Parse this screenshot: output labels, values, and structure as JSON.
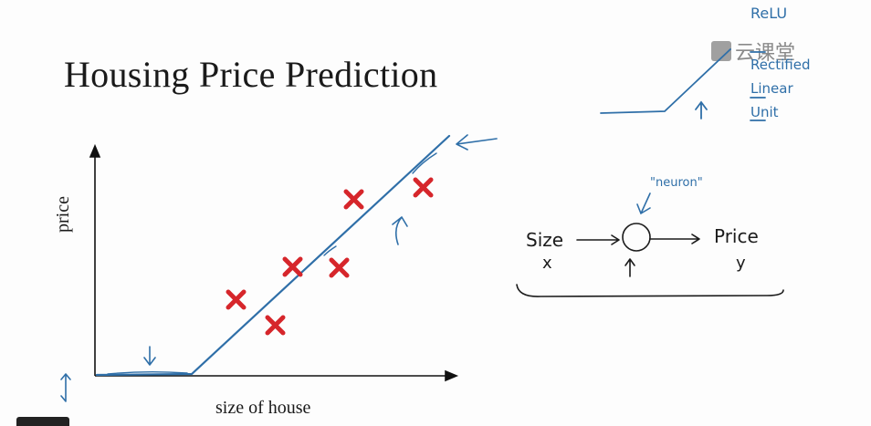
{
  "slide": {
    "title": "Housing Price Prediction",
    "y_axis_label": "price",
    "x_axis_label": "size of house",
    "watermark": "云课堂"
  },
  "annotations": {
    "relu_lines": [
      "ReLU",
      "Rectified",
      "Linear",
      "Unit"
    ],
    "neuron_label": "\"neuron\"",
    "input_word": "Size",
    "input_var": "x",
    "output_word": "Price",
    "output_var": "y"
  },
  "colors": {
    "marker": "#d6262b",
    "pen": "#2f6fa8",
    "ink": "#1b1b1b"
  }
}
